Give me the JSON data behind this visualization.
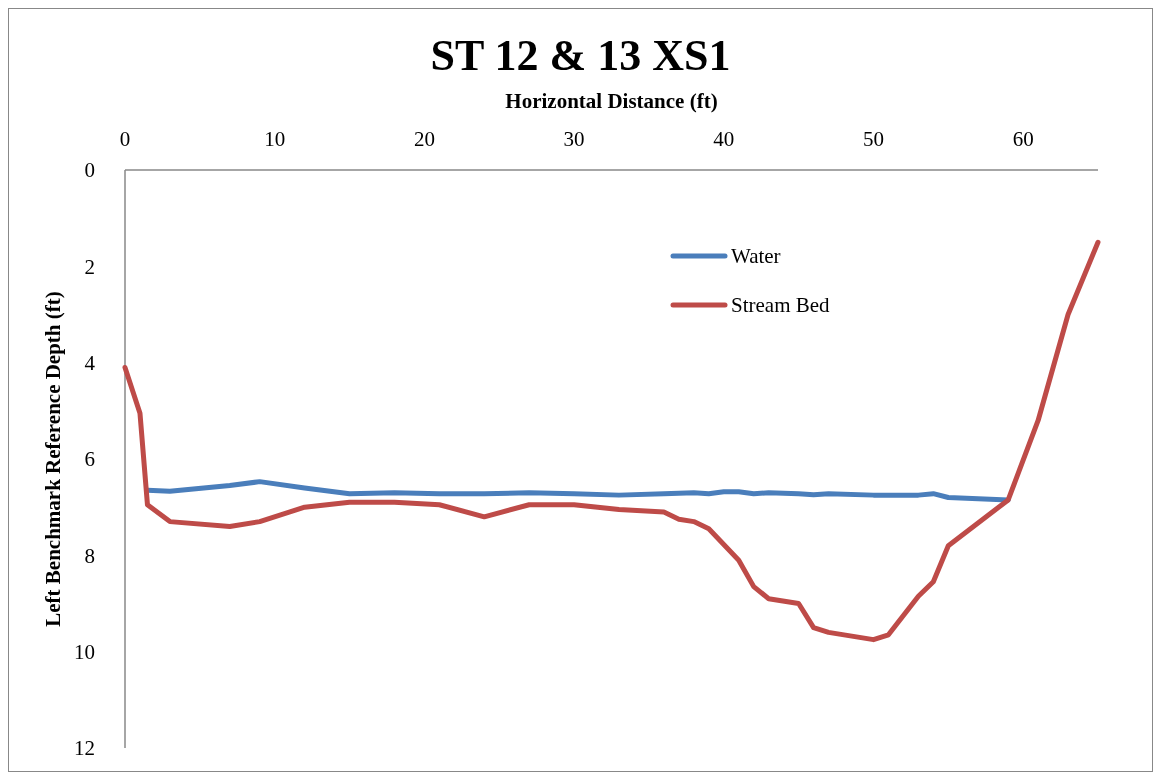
{
  "chart_data": {
    "type": "line",
    "title": "ST 12 & 13 XS1",
    "xlabel": "Horizontal Distance (ft)",
    "ylabel": "Left Benchmark Reference Depth (ft)",
    "xlim": [
      0,
      65
    ],
    "xticks": [
      0,
      10,
      20,
      30,
      40,
      50,
      60
    ],
    "ylim": [
      12,
      0
    ],
    "yticks": [
      0,
      2,
      4,
      6,
      8,
      10,
      12
    ],
    "grid": false,
    "legend": "top right",
    "series": [
      {
        "name": "Water",
        "color": "#4a7ebb",
        "x": [
          1.5,
          3,
          7,
          9,
          12,
          15,
          18,
          21,
          24,
          27,
          30,
          33,
          36,
          38,
          39,
          40,
          41,
          42,
          43,
          45,
          46,
          47,
          50,
          53,
          54,
          55,
          59
        ],
        "values": [
          6.65,
          6.67,
          6.55,
          6.47,
          6.6,
          6.72,
          6.7,
          6.72,
          6.72,
          6.7,
          6.72,
          6.75,
          6.72,
          6.7,
          6.72,
          6.68,
          6.68,
          6.72,
          6.7,
          6.72,
          6.74,
          6.72,
          6.75,
          6.75,
          6.72,
          6.8,
          6.85
        ]
      },
      {
        "name": "Stream Bed",
        "color": "#be4b48",
        "x": [
          0,
          1,
          1.5,
          3,
          7,
          9,
          12,
          15,
          18,
          21,
          24,
          27,
          30,
          33,
          36,
          37,
          38,
          39,
          41,
          42,
          43,
          45,
          46,
          47,
          50,
          51,
          53,
          54,
          55,
          59,
          61,
          63,
          65
        ],
        "values": [
          4.1,
          5.05,
          6.95,
          7.3,
          7.4,
          7.3,
          7.0,
          6.9,
          6.9,
          6.95,
          7.2,
          6.95,
          6.95,
          7.05,
          7.1,
          7.25,
          7.3,
          7.45,
          8.1,
          8.65,
          8.9,
          9.0,
          9.5,
          9.6,
          9.75,
          9.65,
          8.85,
          8.55,
          7.8,
          6.85,
          5.2,
          3.0,
          1.5
        ]
      }
    ]
  }
}
